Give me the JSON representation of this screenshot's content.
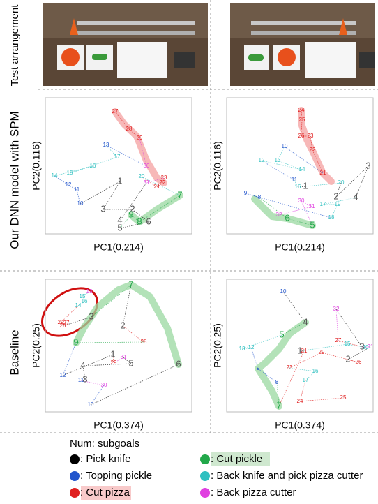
{
  "row_labels": [
    "Test arrangement",
    "Our DNN model with SPM",
    "Baseline"
  ],
  "panels": [
    {
      "x_label": "PC1(0.214)",
      "y_label": "PC2(0.116)",
      "points": [
        {
          "label": "27",
          "group": 4
        },
        {
          "label": "28",
          "group": 4
        },
        {
          "label": "29",
          "group": 4
        },
        {
          "label": "30",
          "group": 5
        },
        {
          "label": "13",
          "group": 2
        },
        {
          "label": "17",
          "group": 3
        },
        {
          "label": "15",
          "group": 3
        },
        {
          "label": "16",
          "group": 3
        },
        {
          "label": "14",
          "group": 3
        },
        {
          "label": "12",
          "group": 2
        },
        {
          "label": "11",
          "group": 2
        },
        {
          "label": "10",
          "group": 2
        },
        {
          "label": "1",
          "group": 0
        },
        {
          "label": "3",
          "group": 0
        },
        {
          "label": "2",
          "group": 0
        },
        {
          "label": "6",
          "group": 0
        },
        {
          "label": "5",
          "group": 0
        },
        {
          "label": "9",
          "group": 1
        },
        {
          "label": "8",
          "group": 1
        },
        {
          "label": "7",
          "group": 1
        },
        {
          "label": "20",
          "group": 3
        },
        {
          "label": "21",
          "group": 4
        },
        {
          "label": "22",
          "group": 4
        },
        {
          "label": "23",
          "group": 4
        },
        {
          "label": "31",
          "group": 5
        },
        {
          "label": "4",
          "group": 0
        }
      ]
    },
    {
      "x_label": "PC1(0.214)",
      "y_label": "PC2(0.116)",
      "points": [
        {
          "label": "24",
          "group": 4
        },
        {
          "label": "25",
          "group": 4
        },
        {
          "label": "26",
          "group": 4
        },
        {
          "label": "23",
          "group": 4
        },
        {
          "label": "22",
          "group": 4
        },
        {
          "label": "21",
          "group": 4
        },
        {
          "label": "10",
          "group": 2
        },
        {
          "label": "13",
          "group": 3
        },
        {
          "label": "14",
          "group": 3
        },
        {
          "label": "12",
          "group": 3
        },
        {
          "label": "11",
          "group": 2
        },
        {
          "label": "16",
          "group": 3
        },
        {
          "label": "1",
          "group": 0
        },
        {
          "label": "20",
          "group": 3
        },
        {
          "label": "2",
          "group": 0
        },
        {
          "label": "3",
          "group": 0
        },
        {
          "label": "4",
          "group": 0
        },
        {
          "label": "17",
          "group": 3
        },
        {
          "label": "19",
          "group": 3
        },
        {
          "label": "18",
          "group": 3
        },
        {
          "label": "9",
          "group": 2
        },
        {
          "label": "8",
          "group": 2
        },
        {
          "label": "6",
          "group": 1
        },
        {
          "label": "5",
          "group": 1
        },
        {
          "label": "30",
          "group": 5
        },
        {
          "label": "31",
          "group": 5
        },
        {
          "label": "32",
          "group": 5
        }
      ]
    },
    {
      "x_label": "PC1(0.374)",
      "y_label": "PC2(0.25)",
      "points": [
        {
          "label": "13",
          "group": 5
        },
        {
          "label": "15",
          "group": 3
        },
        {
          "label": "16",
          "group": 3
        },
        {
          "label": "14",
          "group": 3
        },
        {
          "label": "29",
          "group": 4
        },
        {
          "label": "27",
          "group": 4
        },
        {
          "label": "26",
          "group": 4
        },
        {
          "label": "3",
          "group": 0
        },
        {
          "label": "7",
          "group": 1
        },
        {
          "label": "2",
          "group": 0
        },
        {
          "label": "28",
          "group": 4
        },
        {
          "label": "9",
          "group": 1
        },
        {
          "label": "12",
          "group": 2
        },
        {
          "label": "1",
          "group": 0
        },
        {
          "label": "29",
          "group": 4
        },
        {
          "label": "31",
          "group": 5
        },
        {
          "label": "5",
          "group": 0
        },
        {
          "label": "4",
          "group": 0
        },
        {
          "label": "3",
          "group": 0
        },
        {
          "label": "11",
          "group": 2
        },
        {
          "label": "30",
          "group": 5
        },
        {
          "label": "10",
          "group": 2
        },
        {
          "label": "6",
          "group": 0
        }
      ]
    },
    {
      "x_label": "PC1(0.374)",
      "y_label": "PC2(0.25)",
      "points": [
        {
          "label": "10",
          "group": 2
        },
        {
          "label": "4",
          "group": 0
        },
        {
          "label": "5",
          "group": 1
        },
        {
          "label": "13",
          "group": 3
        },
        {
          "label": "12",
          "group": 3
        },
        {
          "label": "9",
          "group": 2
        },
        {
          "label": "8",
          "group": 2
        },
        {
          "label": "7",
          "group": 1
        },
        {
          "label": "21",
          "group": 4
        },
        {
          "label": "1",
          "group": 0
        },
        {
          "label": "15",
          "group": 3
        },
        {
          "label": "20",
          "group": 3
        },
        {
          "label": "27",
          "group": 4
        },
        {
          "label": "32",
          "group": 5
        },
        {
          "label": "3",
          "group": 0
        },
        {
          "label": "31",
          "group": 5
        },
        {
          "label": "2",
          "group": 0
        },
        {
          "label": "26",
          "group": 4
        },
        {
          "label": "29",
          "group": 4
        },
        {
          "label": "23",
          "group": 4
        },
        {
          "label": "16",
          "group": 3
        },
        {
          "label": "17",
          "group": 3
        },
        {
          "label": "24",
          "group": 4
        },
        {
          "label": "25",
          "group": 4
        }
      ]
    }
  ],
  "legend": {
    "title": "Num: subgoals",
    "items": [
      {
        "label": ": Pick knife",
        "color": "#000000"
      },
      {
        "label": ": Cut pickle",
        "color": "#22a84a"
      },
      {
        "label": ": Topping pickle",
        "color": "#2255cc"
      },
      {
        "label": ": Back knife and pick pizza cutter",
        "color": "#2fc0c0"
      },
      {
        "label": ": Cut pizza",
        "color": "#e02020"
      },
      {
        "label": ": Back pizza cutter",
        "color": "#e040e0"
      }
    ]
  }
}
